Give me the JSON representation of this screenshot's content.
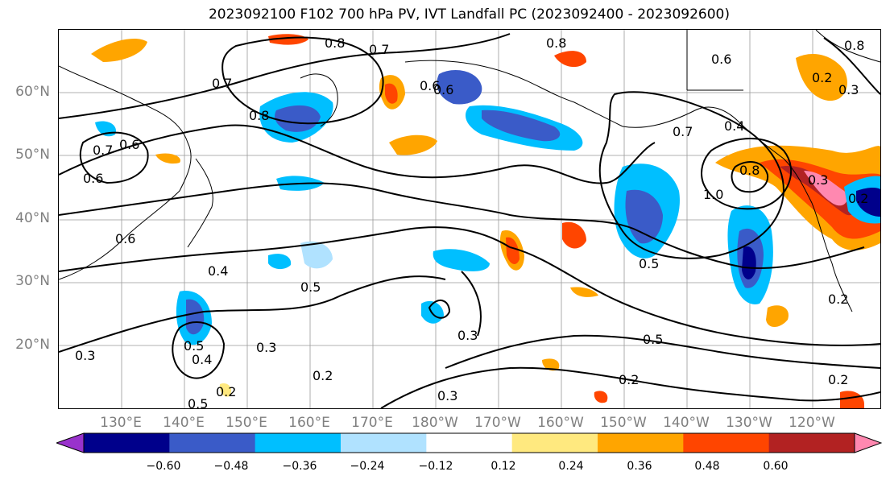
{
  "title": "2023092100 F102 700 hPa PV, IVT Landfall PC (2023092400 - 2023092600)",
  "latitude_labels": [
    "60°N",
    "50°N",
    "40°N",
    "30°N",
    "20°N"
  ],
  "longitude_labels": [
    "130°E",
    "140°E",
    "150°E",
    "160°E",
    "170°E",
    "180°W",
    "170°W",
    "160°W",
    "150°W",
    "140°W",
    "130°W",
    "120°W"
  ],
  "colorbar": {
    "tick_labels": [
      "−0.60",
      "−0.48",
      "−0.36",
      "−0.24",
      "−0.12",
      "0.12",
      "0.24",
      "0.36",
      "0.48",
      "0.60"
    ],
    "colors": [
      "#9932CC",
      "#00008B",
      "#3A5BC8",
      "#00BFFF",
      "#B0E2FF",
      "#FFFFFF",
      "#FFE97F",
      "#FFA500",
      "#FF4500",
      "#B22222",
      "#FF88B0"
    ]
  },
  "contour_labels": [
    "0.8",
    "0.7",
    "0.8",
    "0.6",
    "0.7",
    "0.8",
    "0.6",
    "0.7",
    "0.6",
    "0.6",
    "0.6",
    "0.4",
    "0.5",
    "0.5",
    "0.3",
    "0.4",
    "0.5",
    "0.3",
    "0.2",
    "0.3",
    "0.2",
    "0.3",
    "0.2",
    "0.5",
    "0.5",
    "0.7",
    "0.4",
    "1.0",
    "0.8",
    "0.3",
    "0.2",
    "0.2",
    "0.2",
    "0.2",
    "0.3",
    "0.6",
    "0.8"
  ]
}
